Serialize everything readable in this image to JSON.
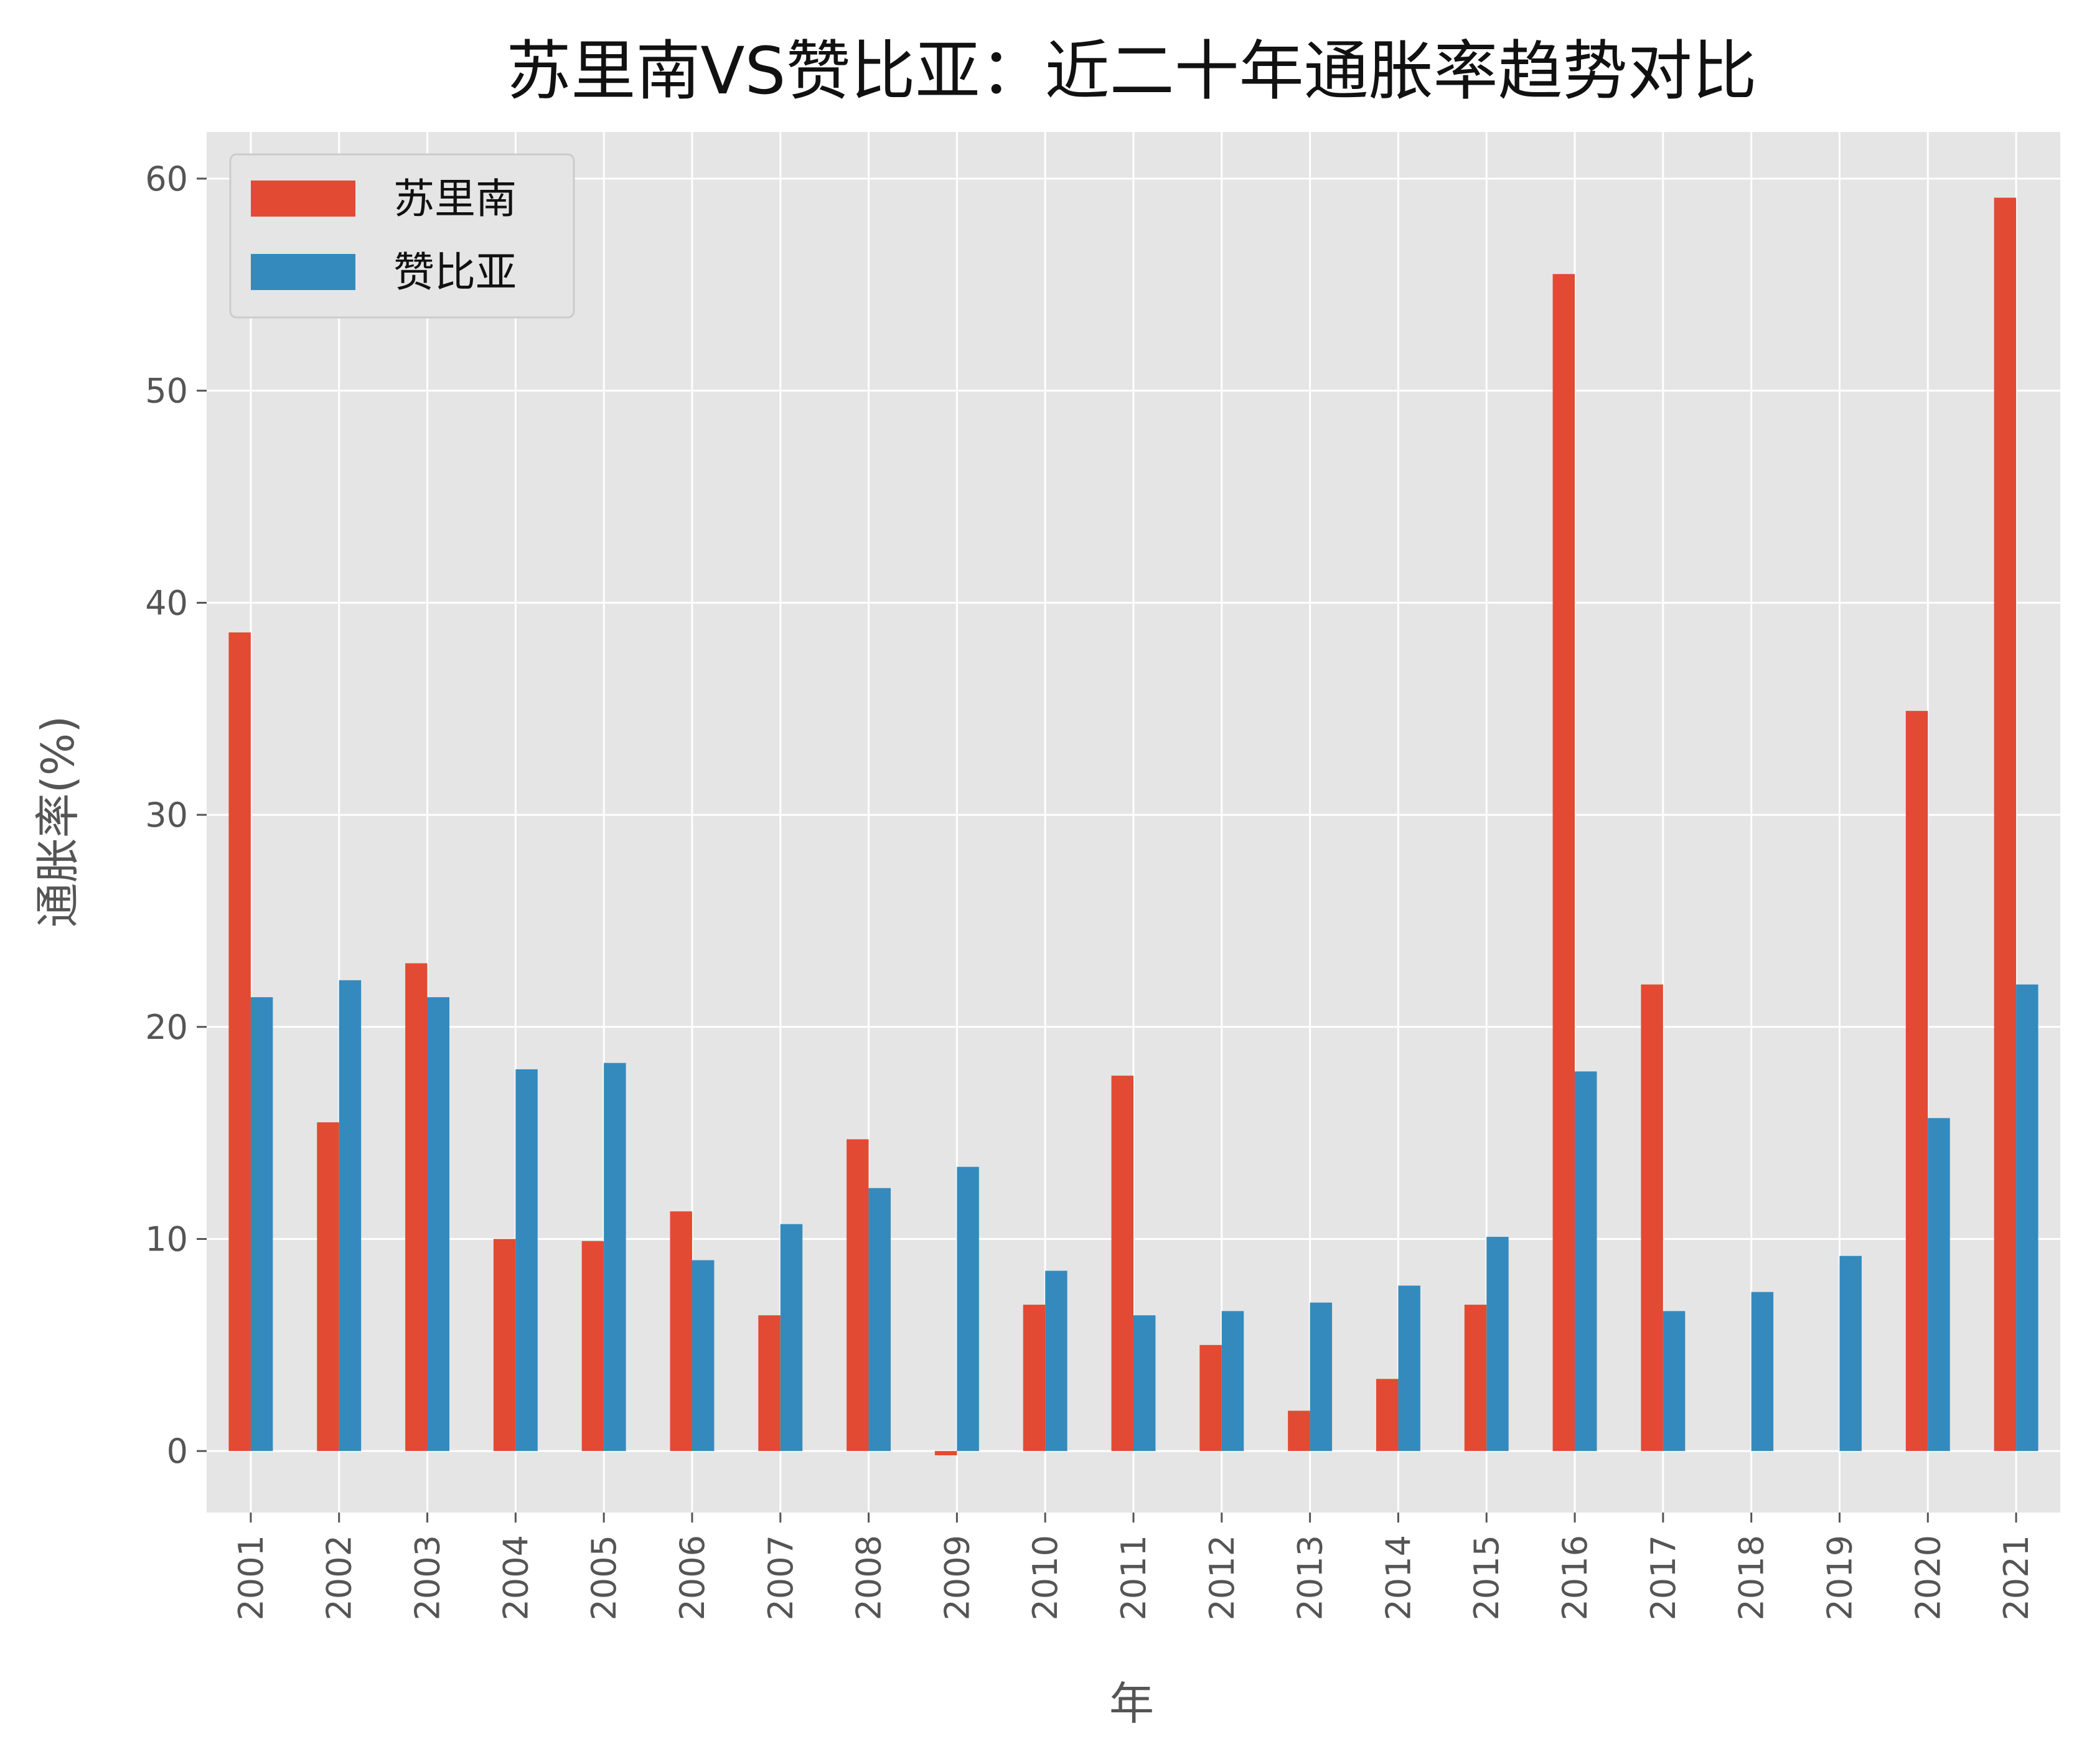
{
  "chart_data": {
    "type": "bar",
    "title": "苏里南VS赞比亚：近二十年通胀率趋势对比",
    "xlabel": "年",
    "ylabel": "通胀率(%)",
    "categories": [
      "2001",
      "2002",
      "2003",
      "2004",
      "2005",
      "2006",
      "2007",
      "2008",
      "2009",
      "2010",
      "2011",
      "2012",
      "2013",
      "2014",
      "2015",
      "2016",
      "2017",
      "2018",
      "2019",
      "2020",
      "2021"
    ],
    "series": [
      {
        "name": "苏里南",
        "color": "#E24A33",
        "values": [
          38.6,
          15.5,
          23.0,
          10.0,
          9.9,
          11.3,
          6.4,
          14.7,
          -0.2,
          6.9,
          17.7,
          5.0,
          1.9,
          3.4,
          6.9,
          55.5,
          22.0,
          0.0,
          0.0,
          34.9,
          59.1
        ]
      },
      {
        "name": "赞比亚",
        "color": "#348ABD",
        "values": [
          21.4,
          22.2,
          21.4,
          18.0,
          18.3,
          9.0,
          10.7,
          12.4,
          13.4,
          8.5,
          6.4,
          6.6,
          7.0,
          7.8,
          10.1,
          17.9,
          6.6,
          7.5,
          9.2,
          15.7,
          22.0
        ]
      }
    ],
    "ylim": [
      -2.9,
      62.2
    ],
    "yticks": [
      0,
      10,
      20,
      30,
      40,
      50,
      60
    ],
    "grid": true,
    "legend": "top-left"
  }
}
